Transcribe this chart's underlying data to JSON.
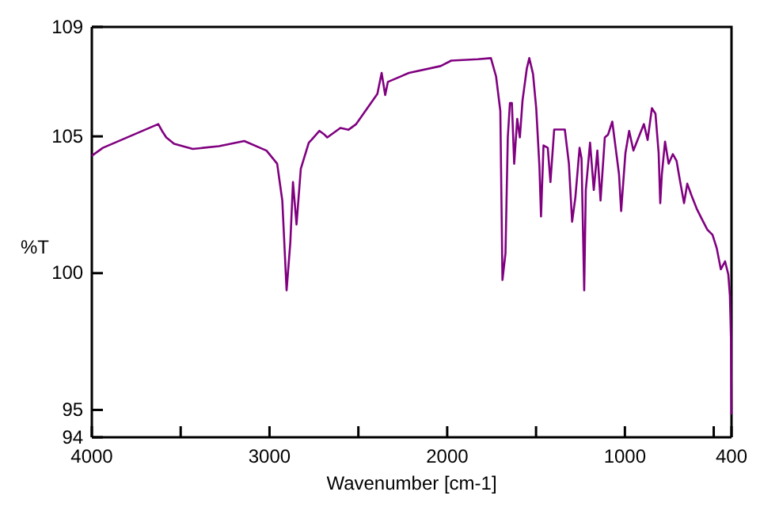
{
  "chart_data": {
    "type": "line",
    "xlabel": "Wavenumber [cm-1]",
    "ylabel": "%T",
    "xlim": [
      4000,
      400
    ],
    "ylim": [
      94,
      109
    ],
    "xticks": [
      4000,
      {
        "value": 3500,
        "label": null
      },
      3000,
      {
        "value": 2500,
        "label": null
      },
      2000,
      {
        "value": 1500,
        "label": null
      },
      1000,
      {
        "value": 500,
        "label": null
      },
      400
    ],
    "yticks": [
      94,
      95,
      100,
      105,
      109
    ],
    "grid": false,
    "series": [
      {
        "color": "#800080",
        "x": [
          4000,
          3938,
          3626,
          3605,
          3581,
          3537,
          3432,
          3284,
          3142,
          3017,
          2957,
          2928,
          2904,
          2883,
          2868,
          2848,
          2824,
          2779,
          2764,
          2719,
          2690,
          2675,
          2601,
          2556,
          2512,
          2393,
          2369,
          2349,
          2334,
          2215,
          2037,
          1977,
          1828,
          1754,
          1725,
          1701,
          1689,
          1672,
          1659,
          1647,
          1636,
          1623,
          1606,
          1591,
          1576,
          1552,
          1538,
          1517,
          1499,
          1481,
          1472,
          1458,
          1434,
          1419,
          1398,
          1338,
          1315,
          1297,
          1279,
          1255,
          1244,
          1229,
          1220,
          1196,
          1175,
          1155,
          1137,
          1113,
          1095,
          1071,
          1050,
          1033,
          1021,
          997,
          976,
          952,
          923,
          893,
          872,
          848,
          828,
          810,
          801,
          792,
          774,
          754,
          730,
          709,
          691,
          667,
          649,
          625,
          596,
          567,
          536,
          507,
          483,
          460,
          436,
          418,
          409,
          403,
          400
        ],
        "values": [
          104.29,
          104.58,
          105.45,
          105.2,
          104.96,
          104.73,
          104.54,
          104.64,
          104.83,
          104.48,
          104.0,
          102.65,
          99.37,
          101.11,
          103.33,
          101.78,
          103.81,
          104.77,
          104.87,
          105.2,
          105.06,
          104.96,
          105.31,
          105.24,
          105.45,
          106.55,
          107.32,
          106.51,
          106.99,
          107.32,
          107.57,
          107.77,
          107.82,
          107.86,
          107.19,
          105.93,
          99.75,
          100.72,
          104.96,
          106.22,
          106.22,
          104.0,
          105.64,
          104.96,
          106.32,
          107.48,
          107.86,
          107.28,
          106.03,
          103.9,
          102.07,
          104.67,
          104.58,
          103.33,
          105.25,
          105.25,
          104.0,
          101.88,
          102.75,
          104.58,
          104.19,
          99.37,
          103.04,
          104.77,
          103.04,
          104.48,
          102.65,
          104.96,
          105.06,
          105.54,
          104.48,
          103.61,
          102.27,
          104.39,
          105.2,
          104.48,
          104.96,
          105.45,
          104.87,
          106.03,
          105.83,
          104.39,
          102.56,
          103.61,
          104.81,
          104.0,
          104.35,
          104.1,
          103.42,
          102.56,
          103.27,
          102.84,
          102.36,
          101.98,
          101.59,
          101.4,
          100.91,
          100.14,
          100.43,
          99.95,
          99.18,
          97.63,
          94.83
        ]
      }
    ]
  }
}
